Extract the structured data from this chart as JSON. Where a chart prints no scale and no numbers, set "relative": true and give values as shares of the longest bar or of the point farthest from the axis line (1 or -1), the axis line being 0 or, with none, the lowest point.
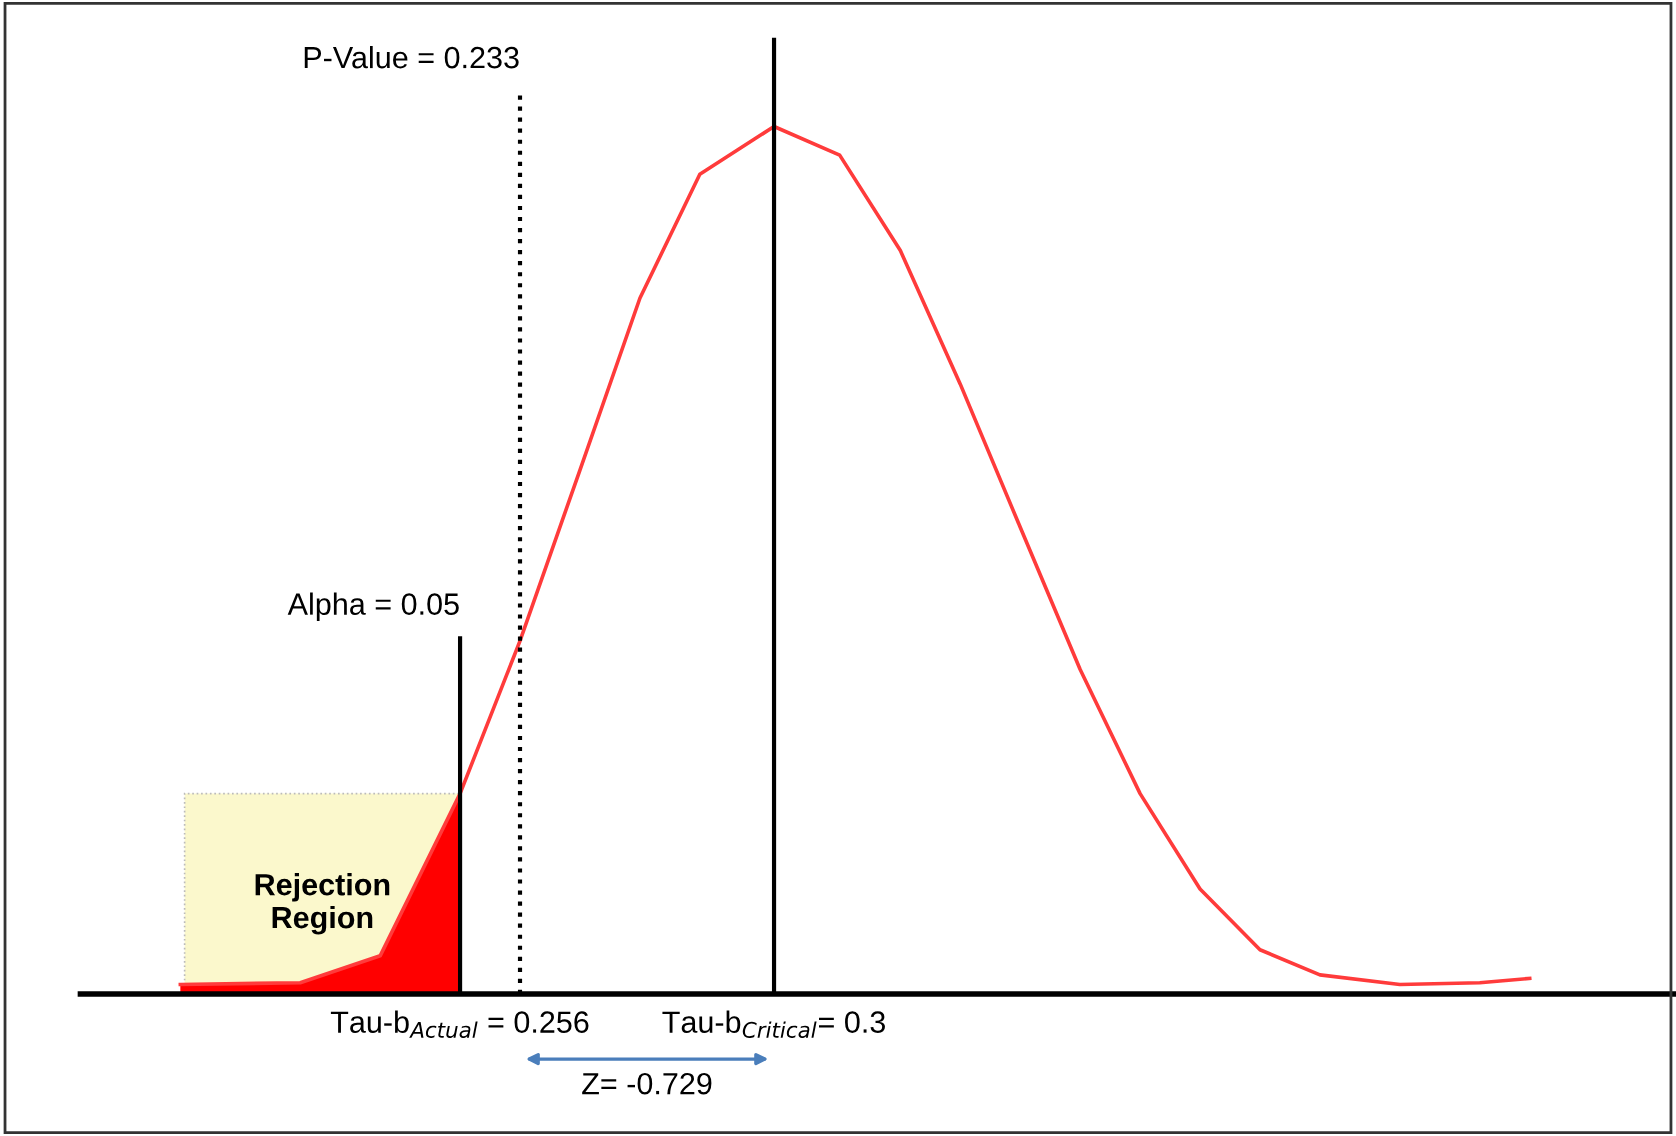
{
  "chart_data": {
    "type": "line",
    "relative": true,
    "series": [
      {
        "color": "#ff3b3b",
        "x": [
          0.2168,
          0.2336,
          0.2448,
          0.256,
          0.2644,
          0.2728,
          0.2812,
          0.2896,
          0.3,
          0.3092,
          0.3177,
          0.3261,
          0.3345,
          0.3429,
          0.3513,
          0.3597,
          0.3681,
          0.3765,
          0.3877,
          0.3989,
          0.4059
        ],
        "values": [
          0.011,
          0.013,
          0.044,
          0.231,
          0.407,
          0.604,
          0.802,
          0.945,
          1,
          0.967,
          0.857,
          0.703,
          0.538,
          0.374,
          0.231,
          0.121,
          0.051,
          0.022,
          0.011,
          0.013,
          0.018
        ]
      },
      {
        "type": "area",
        "color": "#ff0000",
        "x": [
          0.2168,
          0.2336,
          0.2448,
          0.256
        ],
        "values": [
          0.011,
          0.013,
          0.044,
          0.231
        ]
      }
    ],
    "xlim": [
      0.2028,
      0.4264
    ],
    "xticks": [
      {
        "value": 0.256,
        "label": "Tau-b$_{Actual}$ = 0.256"
      },
      {
        "value": 0.3,
        "label": "Tau-b$_{Critical}$= 0.3"
      }
    ],
    "bands": [
      {
        "axis": "x",
        "from": 0.2174,
        "to": 0.256,
        "label": "Rejection\nRegion",
        "color": "#fbf8cc"
      }
    ],
    "ref_lines": [
      {
        "axis": "x",
        "value": 0.3,
        "color": "#000000",
        "line_style": "solid"
      },
      {
        "axis": "x",
        "value": 0.256,
        "color": "#000000",
        "line_style": "solid"
      },
      {
        "axis": "x",
        "value": 0.2644,
        "color": "#000000",
        "line_style": "dotted"
      }
    ],
    "annotations": [
      "Z= -0.729",
      "Alpha = 0.05",
      "P-Value = 0.233"
    ],
    "grid": false,
    "legend": false
  }
}
